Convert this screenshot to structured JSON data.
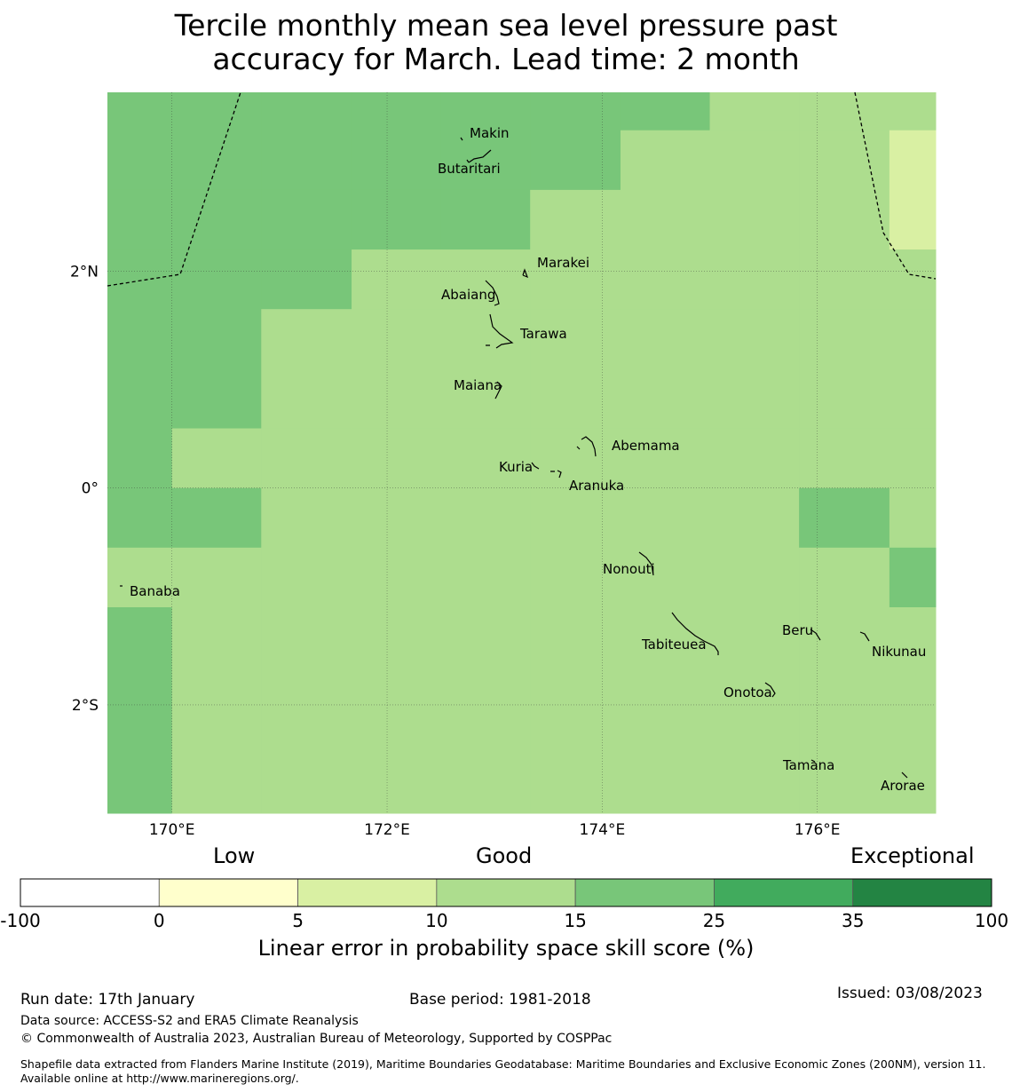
{
  "title_line1": "Tercile monthly mean sea level pressure past",
  "title_line2": "accuracy for March. Lead time: 2 month",
  "chart_data": {
    "type": "heatmap",
    "lon_range": [
      169.4,
      177.1
    ],
    "lat_range": [
      -3.0,
      3.65
    ],
    "lon_ticks": [
      {
        "value": 170,
        "label": "170°E"
      },
      {
        "value": 172,
        "label": "172°E"
      },
      {
        "value": 174,
        "label": "174°E"
      },
      {
        "value": 176,
        "label": "176°E"
      }
    ],
    "lat_ticks": [
      {
        "value": 2,
        "label": "2°N"
      },
      {
        "value": 0,
        "label": "0°"
      },
      {
        "value": -2,
        "label": "2°S"
      }
    ],
    "lon_edges": [
      169.4,
      170.0,
      170.83,
      171.67,
      172.5,
      173.33,
      174.17,
      175.0,
      175.83,
      176.67,
      177.1
    ],
    "lat_edges": [
      3.65,
      3.3,
      2.75,
      2.2,
      1.65,
      0.55,
      0.0,
      -0.55,
      -1.1,
      -3.0
    ],
    "cells": [
      [
        20,
        20,
        20,
        20,
        20,
        20,
        20,
        12,
        12,
        12
      ],
      [
        20,
        20,
        20,
        20,
        20,
        20,
        12,
        12,
        12,
        7
      ],
      [
        20,
        20,
        20,
        20,
        20,
        12,
        12,
        12,
        12,
        7
      ],
      [
        20,
        20,
        20,
        12,
        12,
        12,
        12,
        12,
        12,
        12
      ],
      [
        20,
        20,
        12,
        12,
        12,
        12,
        12,
        12,
        12,
        12
      ],
      [
        20,
        12,
        12,
        12,
        12,
        12,
        12,
        12,
        12,
        12
      ],
      [
        20,
        20,
        12,
        12,
        12,
        12,
        12,
        12,
        20,
        12
      ],
      [
        12,
        12,
        12,
        12,
        12,
        12,
        12,
        12,
        12,
        20
      ],
      [
        20,
        12,
        12,
        12,
        12,
        12,
        12,
        12,
        12,
        12
      ]
    ],
    "islands": [
      {
        "name": "Makin",
        "lon": 172.8,
        "lat": 3.3
      },
      {
        "name": "Butaritari",
        "lon": 172.9,
        "lat": 3.1
      },
      {
        "name": "Marakei",
        "lon": 173.3,
        "lat": 2.0
      },
      {
        "name": "Abaiang",
        "lon": 173.0,
        "lat": 1.85
      },
      {
        "name": "Tarawa",
        "lon": 173.0,
        "lat": 1.4
      },
      {
        "name": "Maiana",
        "lon": 173.0,
        "lat": 0.95
      },
      {
        "name": "Abemama",
        "lon": 173.9,
        "lat": 0.4
      },
      {
        "name": "Kuria",
        "lon": 173.4,
        "lat": 0.22
      },
      {
        "name": "Aranuka",
        "lon": 173.6,
        "lat": 0.15
      },
      {
        "name": "Banaba",
        "lon": 169.5,
        "lat": -0.88
      },
      {
        "name": "Nonouti",
        "lon": 174.4,
        "lat": -0.65
      },
      {
        "name": "Tabiteuea",
        "lon": 174.8,
        "lat": -1.3
      },
      {
        "name": "Beru",
        "lon": 176.0,
        "lat": -1.32
      },
      {
        "name": "Nikunau",
        "lon": 176.45,
        "lat": -1.35
      },
      {
        "name": "Onotoa",
        "lon": 175.55,
        "lat": -1.8
      },
      {
        "name": "Tamana",
        "lon": 176.0,
        "lat": -2.5
      },
      {
        "name": "Arorae",
        "lon": 176.8,
        "lat": -2.65
      }
    ],
    "colorbar": {
      "categories": [
        "Low",
        "Good",
        "Exceptional"
      ],
      "bounds": [
        -100,
        0,
        5,
        10,
        15,
        25,
        35,
        100
      ],
      "tick_labels": [
        "-100",
        "0",
        "5",
        "10",
        "15",
        "25",
        "35",
        "100"
      ],
      "colors": [
        "#ffffff",
        "#ffffcc",
        "#d9f0a3",
        "#addd8e",
        "#78c679",
        "#41ab5d",
        "#238443"
      ],
      "label": "Linear error in probability space skill score (%)"
    }
  },
  "footer": {
    "run_date": "Run date: 17th January",
    "base_period": "Base period: 1981-2018",
    "issued": "Issued: 03/08/2023",
    "data_source": "Data source: ACCESS-S2 and ERA5 Climate Reanalysis",
    "copyright": "© Commonwealth of Australia 2023, Australian Bureau of Meteorology, Supported by COSPPac",
    "shapefile": "Shapefile data extracted from Flanders Marine Institute (2019), Maritime Boundaries Geodatabase: Maritime Boundaries and Exclusive Economic Zones (200NM), version 11. Available online at http://www.marineregions.org/."
  }
}
